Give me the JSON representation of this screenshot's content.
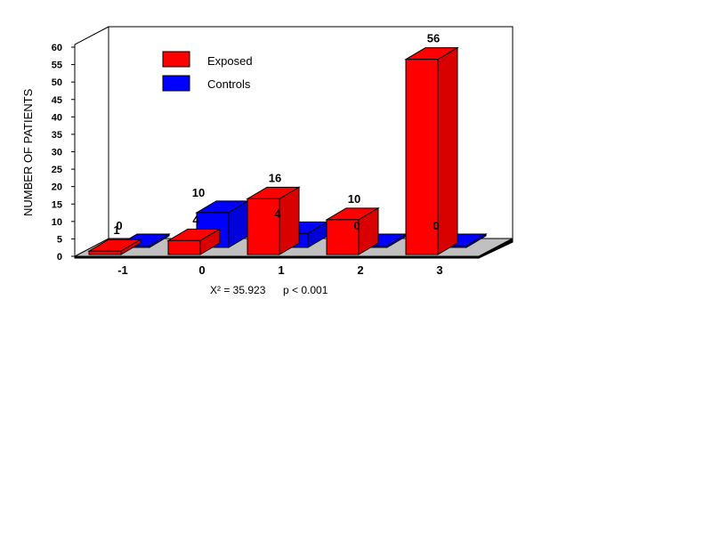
{
  "chart_data": {
    "type": "bar",
    "categories": [
      "-1",
      "0",
      "1",
      "2",
      "3"
    ],
    "series": [
      {
        "name": "Exposed",
        "values": [
          1,
          4,
          16,
          10,
          56
        ],
        "color": "#ff0000"
      },
      {
        "name": "Controls",
        "values": [
          0,
          10,
          4,
          0,
          0
        ],
        "color": "#0000ff"
      }
    ],
    "ylabel": "NUMBER OF PATIENTS",
    "xlabel": "",
    "ylim": [
      0,
      60
    ],
    "yticks": [
      0,
      5,
      10,
      15,
      20,
      25,
      30,
      35,
      40,
      45,
      50,
      55,
      60
    ],
    "legend_position": "top-left",
    "grid": false,
    "annotations": {
      "chi_square": "X² = 35.923",
      "p_value": "p < 0.001"
    }
  }
}
